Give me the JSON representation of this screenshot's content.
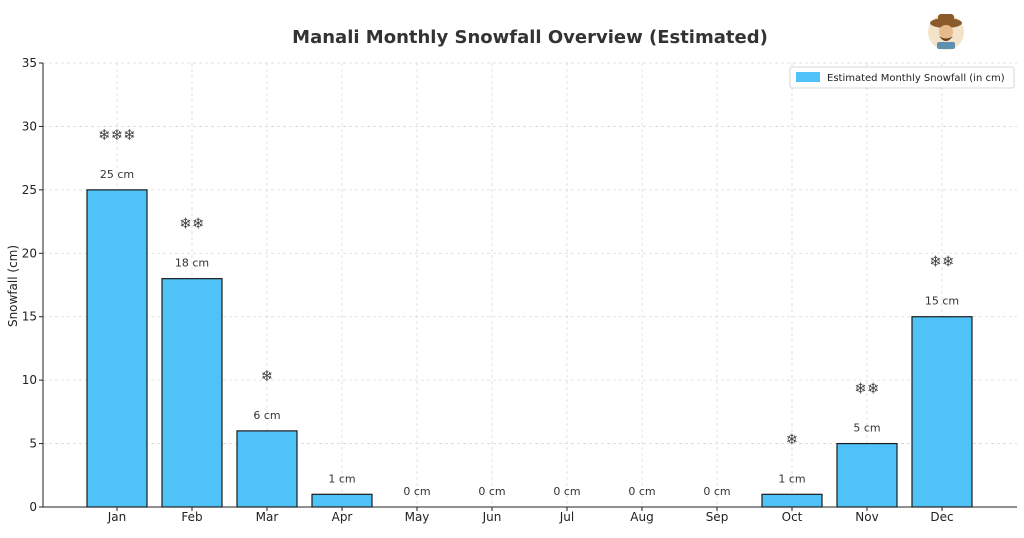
{
  "chart_data": {
    "type": "bar",
    "title": "Manali Monthly Snowfall Overview (Estimated)",
    "xlabel": "",
    "ylabel": "Snowfall (cm)",
    "ylim": [
      0,
      35
    ],
    "yticks": [
      0,
      5,
      10,
      15,
      20,
      25,
      30,
      35
    ],
    "grid": true,
    "legend_position": "top-right",
    "categories": [
      "Jan",
      "Feb",
      "Mar",
      "Apr",
      "May",
      "Jun",
      "Jul",
      "Aug",
      "Sep",
      "Oct",
      "Nov",
      "Dec"
    ],
    "series": [
      {
        "name": "Estimated Monthly Snowfall (in cm)",
        "values": [
          25,
          18,
          6,
          1,
          0,
          0,
          0,
          0,
          0,
          1,
          5,
          15
        ],
        "color": "#4fc3f7",
        "edge_color": "#1a1a1a"
      }
    ],
    "data_labels": [
      "25 cm",
      "18 cm",
      "6 cm",
      "1 cm",
      "0 cm",
      "0 cm",
      "0 cm",
      "0 cm",
      "0 cm",
      "1 cm",
      "5 cm",
      "15 cm"
    ],
    "snowflake_annotations": [
      "❄❄❄",
      "❄❄",
      "❄",
      "",
      "",
      "",
      "",
      "",
      "",
      "❄",
      "❄❄",
      "❄❄"
    ]
  },
  "logo": {
    "icon": "avatar-logo-icon"
  }
}
